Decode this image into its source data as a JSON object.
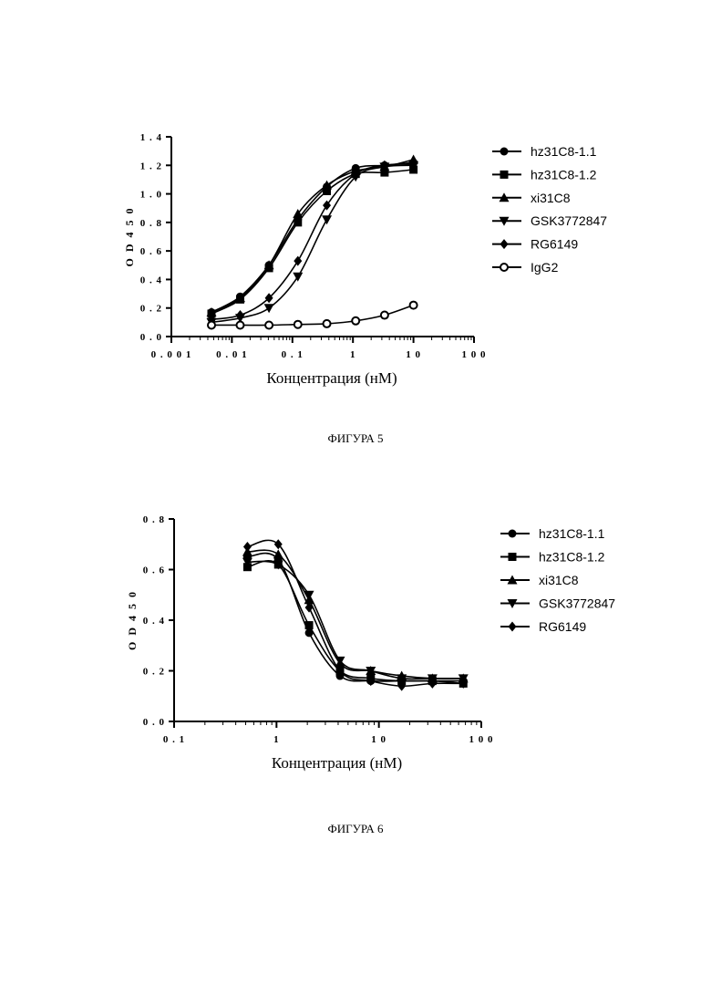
{
  "captions": [
    "ФИГУРА 5",
    "ФИГУРА 6"
  ],
  "chart_data": [
    {
      "type": "scatter",
      "xscale": "log",
      "xlabel": "Концентрация (нМ)",
      "ylabel": "O D 4 5 0",
      "xlim": [
        0.001,
        100
      ],
      "ylim": [
        0.0,
        1.4
      ],
      "xticks": [
        "0 . 0 0 1",
        "0 . 0 1",
        "0 . 1",
        "1",
        "1 0",
        "1 0 0"
      ],
      "yticks": [
        "0 . 0",
        "0 . 2",
        "0 . 4",
        "0 . 6",
        "0 . 8",
        "1 . 0",
        "1 . 2",
        "1 . 4"
      ],
      "series": [
        {
          "name": "hz31C8-1.1",
          "marker": "circle-filled",
          "x": [
            0.0046,
            0.0137,
            0.041,
            0.123,
            0.37,
            1.11,
            3.33,
            10
          ],
          "y": [
            0.17,
            0.28,
            0.5,
            0.82,
            1.05,
            1.18,
            1.2,
            1.22
          ]
        },
        {
          "name": "hz31C8-1.2",
          "marker": "square-filled",
          "x": [
            0.0046,
            0.0137,
            0.041,
            0.123,
            0.37,
            1.11,
            3.33,
            10
          ],
          "y": [
            0.16,
            0.26,
            0.48,
            0.8,
            1.02,
            1.14,
            1.15,
            1.17
          ]
        },
        {
          "name": "xi31C8",
          "marker": "triangle-up-filled",
          "x": [
            0.0046,
            0.0137,
            0.041,
            0.123,
            0.37,
            1.11,
            3.33,
            10
          ],
          "y": [
            0.17,
            0.27,
            0.5,
            0.86,
            1.06,
            1.16,
            1.19,
            1.24
          ]
        },
        {
          "name": "GSK3772847",
          "marker": "triangle-down-filled",
          "x": [
            0.0046,
            0.0137,
            0.041,
            0.123,
            0.37,
            1.11,
            3.33,
            10
          ],
          "y": [
            0.1,
            0.13,
            0.2,
            0.42,
            0.82,
            1.12,
            1.19,
            1.2
          ]
        },
        {
          "name": "RG6149",
          "marker": "diamond-filled",
          "x": [
            0.0046,
            0.0137,
            0.041,
            0.123,
            0.37,
            1.11,
            3.33,
            10
          ],
          "y": [
            0.12,
            0.15,
            0.27,
            0.53,
            0.92,
            1.14,
            1.2,
            1.21
          ]
        },
        {
          "name": "IgG2",
          "marker": "circle-open",
          "x": [
            0.0046,
            0.0137,
            0.041,
            0.123,
            0.37,
            1.11,
            3.33,
            10
          ],
          "y": [
            0.08,
            0.08,
            0.08,
            0.085,
            0.09,
            0.11,
            0.15,
            0.22
          ]
        }
      ]
    },
    {
      "type": "scatter",
      "xscale": "log",
      "xlabel": "Концентрация (нМ)",
      "ylabel": "O D 4 5 0",
      "xlim": [
        0.1,
        100
      ],
      "ylim": [
        0.0,
        0.8
      ],
      "xticks": [
        "0 . 1",
        "1",
        "1 0",
        "1 0 0"
      ],
      "yticks": [
        "0 . 0",
        "0 . 2",
        "0 . 4",
        "0 . 6",
        "0 . 8"
      ],
      "series": [
        {
          "name": "hz31C8-1.1",
          "marker": "circle-filled",
          "x": [
            0.52,
            1.04,
            2.08,
            4.17,
            8.33,
            16.7,
            33.3,
            66.7
          ],
          "y": [
            0.65,
            0.64,
            0.35,
            0.18,
            0.16,
            0.16,
            0.16,
            0.16
          ]
        },
        {
          "name": "hz31C8-1.2",
          "marker": "square-filled",
          "x": [
            0.52,
            1.04,
            2.08,
            4.17,
            8.33,
            16.7,
            33.3,
            66.7
          ],
          "y": [
            0.61,
            0.62,
            0.38,
            0.2,
            0.17,
            0.16,
            0.16,
            0.15
          ]
        },
        {
          "name": "xi31C8",
          "marker": "triangle-up-filled",
          "x": [
            0.52,
            1.04,
            2.08,
            4.17,
            8.33,
            16.7,
            33.3,
            66.7
          ],
          "y": [
            0.67,
            0.66,
            0.48,
            0.23,
            0.2,
            0.18,
            0.17,
            0.17
          ]
        },
        {
          "name": "GSK3772847",
          "marker": "triangle-down-filled",
          "x": [
            0.52,
            1.04,
            2.08,
            4.17,
            8.33,
            16.7,
            33.3,
            66.7
          ],
          "y": [
            0.63,
            0.62,
            0.5,
            0.24,
            0.2,
            0.17,
            0.17,
            0.17
          ]
        },
        {
          "name": "RG6149",
          "marker": "diamond-filled",
          "x": [
            0.52,
            1.04,
            2.08,
            4.17,
            8.33,
            16.7,
            33.3,
            66.7
          ],
          "y": [
            0.69,
            0.7,
            0.45,
            0.2,
            0.16,
            0.14,
            0.15,
            0.15
          ]
        }
      ]
    }
  ]
}
